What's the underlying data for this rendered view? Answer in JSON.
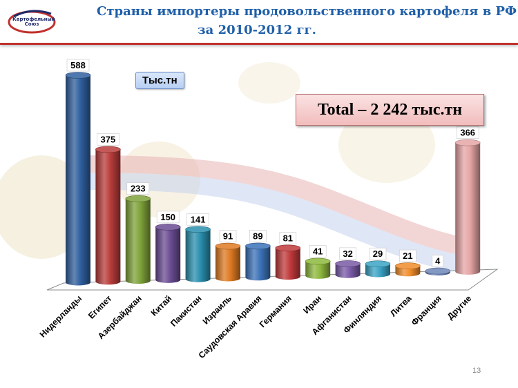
{
  "header": {
    "title_line1": "Страны импортеры продовольственного картофеля в РФ",
    "title_line2": "за 2010-2012 гг.",
    "logo_text_line1": "Картофельный",
    "logo_text_line2": "Союз"
  },
  "unit_label": "Тыс.тн",
  "total_label": "Total – 2 242 тыс.тн",
  "page_number": "13",
  "colors": {
    "header_border": "#c0312d",
    "title": "#1f5fa8"
  },
  "chart_data": {
    "type": "bar",
    "title": "Страны импортеры продовольственного картофеля в РФ за 2010-2012 гг.",
    "ylabel": "Тыс.тн",
    "categories": [
      "Нидерланды",
      "Египет",
      "Азербайджан",
      "Китай",
      "Пакистан",
      "Израиль",
      "Саудовская Аравия",
      "Германия",
      "Иран",
      "Афганистан",
      "Финляндия",
      "Литва",
      "Франция",
      "Другие"
    ],
    "values": [
      588,
      375,
      233,
      150,
      141,
      91,
      89,
      81,
      41,
      32,
      29,
      21,
      4,
      366
    ],
    "value_labels": [
      "588",
      "375",
      "233",
      "150",
      "141",
      "91",
      "89",
      "81",
      "41",
      "32",
      "29",
      "21",
      "4",
      "366"
    ],
    "bar_colors": [
      "#2f5f9e",
      "#b83c3a",
      "#7fa23a",
      "#6a4c93",
      "#2a8fae",
      "#de7a22",
      "#3c72b8",
      "#c0393b",
      "#8db83c",
      "#7a5aa6",
      "#3aa3c4",
      "#f08c2a",
      "#6d86b8",
      "#e6a5a5"
    ],
    "grid": false,
    "legend": "none"
  }
}
